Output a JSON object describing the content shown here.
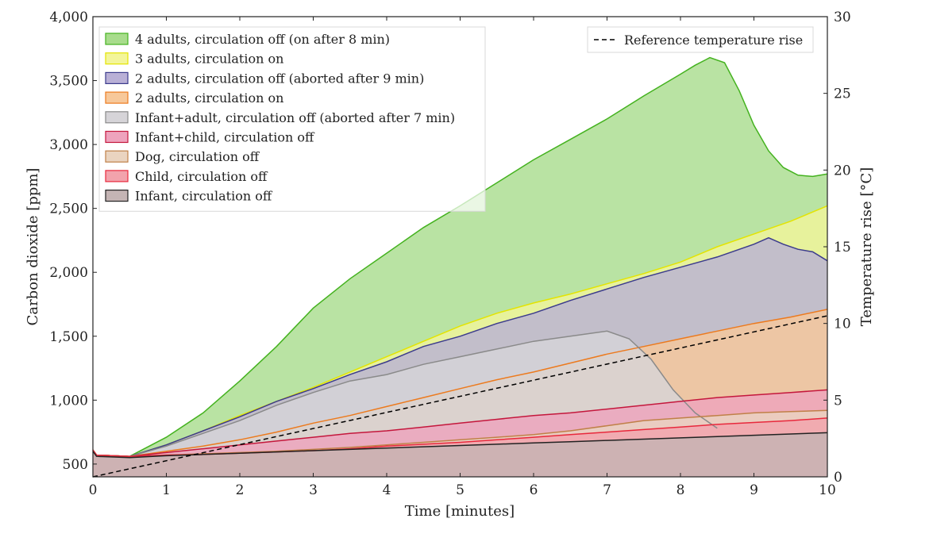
{
  "chart_data": {
    "type": "area",
    "xlabel": "Time [minutes]",
    "ylabel_left": "Carbon dioxide [ppm]",
    "ylabel_right": "Temperature rise [°C]",
    "xlim": [
      0,
      10
    ],
    "ylim_left": [
      400,
      4000
    ],
    "ylim_right": [
      0,
      30
    ],
    "x_ticks": [
      "0",
      "1",
      "2",
      "3",
      "4",
      "5",
      "6",
      "7",
      "8",
      "9",
      "10"
    ],
    "y_ticks_left": [
      "500",
      "1,000",
      "1,500",
      "2,000",
      "2,500",
      "3,000",
      "3,500",
      "4,000"
    ],
    "y_ticks_right": [
      "0",
      "5",
      "10",
      "15",
      "20",
      "25",
      "30"
    ],
    "grid": false,
    "legend_placement": "top-left",
    "series": [
      {
        "name": "4 adults, circulation off (on after 8 min)",
        "color": "#44b21f",
        "fill": "#a8dc8c",
        "x": [
          0,
          0.05,
          0.5,
          1,
          1.5,
          2,
          2.5,
          3,
          3.5,
          4,
          4.5,
          5,
          5.5,
          6,
          6.5,
          7,
          7.5,
          8,
          8.2,
          8.4,
          8.6,
          8.8,
          9,
          9.2,
          9.4,
          9.6,
          9.8,
          10
        ],
        "y": [
          610,
          570,
          560,
          710,
          900,
          1150,
          1420,
          1720,
          1950,
          2150,
          2350,
          2520,
          2700,
          2880,
          3040,
          3200,
          3380,
          3550,
          3620,
          3680,
          3640,
          3420,
          3150,
          2950,
          2820,
          2760,
          2750,
          2770
        ]
      },
      {
        "name": "3 adults, circulation on",
        "color": "#e4e400",
        "fill": "#f3f59a",
        "x": [
          0,
          0.05,
          0.5,
          1,
          1.5,
          2,
          2.5,
          3,
          3.5,
          4,
          4.5,
          5,
          5.5,
          6,
          6.5,
          7,
          7.5,
          8,
          8.5,
          9,
          9.5,
          10
        ],
        "y": [
          610,
          570,
          560,
          650,
          760,
          880,
          990,
          1100,
          1220,
          1340,
          1460,
          1580,
          1680,
          1760,
          1830,
          1910,
          1990,
          2080,
          2200,
          2300,
          2400,
          2520
        ]
      },
      {
        "name": "2 adults, circulation off (aborted after 9 min)",
        "color": "#3b3b8c",
        "fill": "#b9b0d6",
        "x": [
          0,
          0.05,
          0.5,
          1,
          1.5,
          2,
          2.5,
          3,
          3.5,
          4,
          4.5,
          5,
          5.5,
          6,
          6.5,
          7,
          7.5,
          8,
          8.5,
          9,
          9.2,
          9.4,
          9.6,
          9.8,
          10
        ],
        "y": [
          610,
          570,
          560,
          650,
          760,
          870,
          990,
          1090,
          1200,
          1300,
          1420,
          1500,
          1600,
          1680,
          1780,
          1870,
          1960,
          2040,
          2120,
          2220,
          2270,
          2220,
          2180,
          2160,
          2090
        ]
      },
      {
        "name": "2 adults, circulation on",
        "color": "#ec7a1e",
        "fill": "#f7c89a",
        "x": [
          0,
          0.05,
          0.5,
          1,
          1.5,
          2,
          2.5,
          3,
          3.5,
          4,
          4.5,
          5,
          5.5,
          6,
          6.5,
          7,
          7.5,
          8,
          8.5,
          9,
          9.5,
          10
        ],
        "y": [
          610,
          570,
          560,
          600,
          640,
          690,
          750,
          820,
          880,
          950,
          1020,
          1090,
          1160,
          1220,
          1290,
          1360,
          1420,
          1480,
          1540,
          1600,
          1650,
          1710
        ]
      },
      {
        "name": "Infant+adult, circulation off (aborted after 7 min)",
        "color": "#8a8a8a",
        "fill": "#d6d4d8",
        "x": [
          0,
          0.05,
          0.5,
          1,
          1.5,
          2,
          2.5,
          3,
          3.5,
          4,
          4.5,
          5,
          5.5,
          6,
          6.5,
          7,
          7.3,
          7.6,
          7.9,
          8.2,
          8.5
        ],
        "y": [
          610,
          570,
          560,
          640,
          740,
          840,
          960,
          1060,
          1150,
          1200,
          1280,
          1340,
          1400,
          1460,
          1500,
          1540,
          1480,
          1320,
          1080,
          900,
          780
        ]
      },
      {
        "name": "Infant+child, circulation off",
        "color": "#c4173c",
        "fill": "#eea3bd",
        "x": [
          0,
          0.05,
          0.5,
          1,
          1.5,
          2,
          2.5,
          3,
          3.5,
          4,
          4.5,
          5,
          5.5,
          6,
          6.5,
          7,
          7.5,
          8,
          8.5,
          9,
          9.5,
          10
        ],
        "y": [
          610,
          570,
          560,
          590,
          620,
          650,
          680,
          710,
          740,
          760,
          790,
          820,
          850,
          880,
          900,
          930,
          960,
          990,
          1020,
          1040,
          1060,
          1080
        ]
      },
      {
        "name": "Dog, circulation off",
        "color": "#c08048",
        "fill": "#ead4c0",
        "x": [
          0,
          0.05,
          0.5,
          1,
          1.5,
          2,
          2.5,
          3,
          3.5,
          4,
          4.5,
          5,
          5.5,
          6,
          6.5,
          7,
          7.5,
          8,
          8.5,
          9,
          9.5,
          10
        ],
        "y": [
          610,
          570,
          560,
          570,
          580,
          590,
          600,
          615,
          630,
          650,
          670,
          690,
          710,
          730,
          760,
          800,
          840,
          860,
          880,
          900,
          910,
          920
        ]
      },
      {
        "name": "Child, circulation off",
        "color": "#e8283c",
        "fill": "#f2a3ac",
        "x": [
          0,
          0.05,
          0.5,
          1,
          1.5,
          2,
          2.5,
          3,
          3.5,
          4,
          4.5,
          5,
          5.5,
          6,
          6.5,
          7,
          7.5,
          8,
          8.5,
          9,
          9.5,
          10
        ],
        "y": [
          610,
          570,
          560,
          570,
          575,
          585,
          595,
          605,
          620,
          640,
          655,
          670,
          690,
          710,
          730,
          750,
          770,
          790,
          810,
          825,
          840,
          860
        ]
      },
      {
        "name": "Infant, circulation off",
        "color": "#222222",
        "fill": "#c4b4b4",
        "x": [
          0,
          0.05,
          0.5,
          1,
          1.5,
          2,
          2.5,
          3,
          3.5,
          4,
          4.5,
          5,
          5.5,
          6,
          6.5,
          7,
          7.5,
          8,
          8.5,
          9,
          9.5,
          10
        ],
        "y": [
          600,
          560,
          550,
          565,
          575,
          585,
          595,
          605,
          615,
          625,
          635,
          645,
          655,
          665,
          675,
          685,
          695,
          705,
          715,
          725,
          735,
          745
        ]
      }
    ],
    "reference": {
      "name": "Reference temperature rise",
      "axis": "right",
      "color": "#000000",
      "x": [
        0,
        10
      ],
      "y": [
        0,
        10.5
      ]
    }
  }
}
